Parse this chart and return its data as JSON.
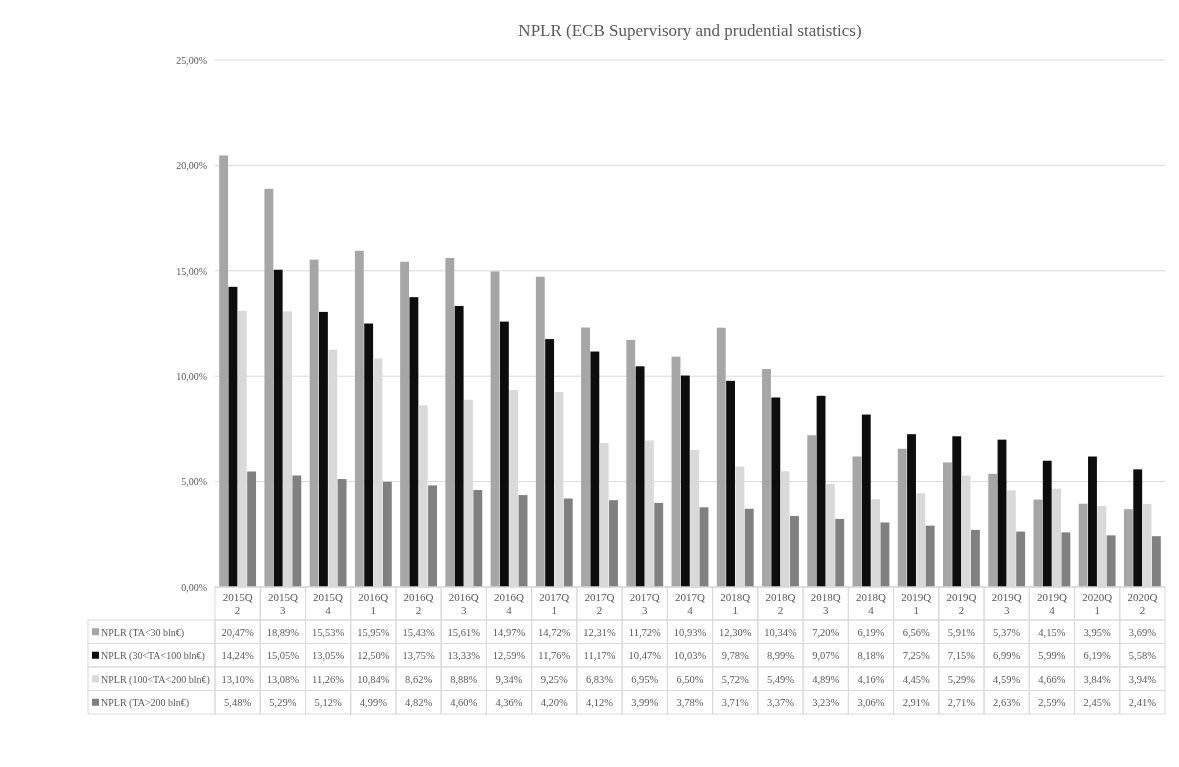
{
  "chart_data": {
    "type": "bar",
    "title": "NPLR (ECB Supervisory and prudential statistics)",
    "categories": [
      "2015Q2",
      "2015Q3",
      "2015Q4",
      "2016Q1",
      "2016Q2",
      "2016Q3",
      "2016Q4",
      "2017Q1",
      "2017Q2",
      "2017Q3",
      "2017Q4",
      "2018Q1",
      "2018Q2",
      "2018Q3",
      "2018Q4",
      "2019Q1",
      "2019Q2",
      "2019Q3",
      "2019Q4",
      "2020Q1",
      "2020Q2"
    ],
    "series": [
      {
        "name": "NPLR (TA<30 bln€)",
        "color": "#a6a6a6",
        "values": [
          20.47,
          18.89,
          15.53,
          15.95,
          15.43,
          15.61,
          14.97,
          14.72,
          12.31,
          11.72,
          10.93,
          12.3,
          10.34,
          7.2,
          6.19,
          6.56,
          5.91,
          5.37,
          4.15,
          3.95,
          3.69
        ],
        "value_labels": [
          "20,47%",
          "18,89%",
          "15,53%",
          "15,95%",
          "15,43%",
          "15,61%",
          "14,97%",
          "14,72%",
          "12,31%",
          "11,72%",
          "10,93%",
          "12,30%",
          "10,34%",
          "7,20%",
          "6,19%",
          "6,56%",
          "5,91%",
          "5,37%",
          "4,15%",
          "3,95%",
          "3,69%"
        ]
      },
      {
        "name": "NPLR (30<TA<100 bln€)",
        "color": "#0d0d0d",
        "values": [
          14.24,
          15.05,
          13.05,
          12.5,
          13.75,
          13.33,
          12.59,
          11.76,
          11.17,
          10.47,
          10.03,
          9.78,
          8.99,
          9.07,
          8.18,
          7.25,
          7.15,
          6.99,
          5.99,
          6.19,
          5.58
        ],
        "value_labels": [
          "14,24%",
          "15,05%",
          "13,05%",
          "12,50%",
          "13,75%",
          "13,33%",
          "12,59%",
          "11,76%",
          "11,17%",
          "10,47%",
          "10,03%",
          "9,78%",
          "8,99%",
          "9,07%",
          "8,18%",
          "7,25%",
          "7,15%",
          "6,99%",
          "5,99%",
          "6,19%",
          "5,58%"
        ]
      },
      {
        "name": "NPLR (100<TA<200 bln€)",
        "color": "#d9d9d9",
        "values": [
          13.1,
          13.08,
          11.26,
          10.84,
          8.62,
          8.88,
          9.34,
          9.25,
          6.83,
          6.95,
          6.5,
          5.72,
          5.49,
          4.89,
          4.16,
          4.45,
          5.29,
          4.59,
          4.66,
          3.84,
          3.94
        ],
        "value_labels": [
          "13,10%",
          "13,08%",
          "11,26%",
          "10,84%",
          "8,62%",
          "8,88%",
          "9,34%",
          "9,25%",
          "6,83%",
          "6,95%",
          "6,50%",
          "5,72%",
          "5,49%",
          "4,89%",
          "4,16%",
          "4,45%",
          "5,29%",
          "4,59%",
          "4,66%",
          "3,84%",
          "3,94%"
        ]
      },
      {
        "name": "NPLR (TA>200 bln€)",
        "color": "#808080",
        "values": [
          5.48,
          5.29,
          5.12,
          4.99,
          4.82,
          4.6,
          4.36,
          4.2,
          4.12,
          3.99,
          3.78,
          3.71,
          3.37,
          3.23,
          3.06,
          2.91,
          2.71,
          2.63,
          2.59,
          2.45,
          2.41
        ],
        "value_labels": [
          "5,48%",
          "5,29%",
          "5,12%",
          "4,99%",
          "4,82%",
          "4,60%",
          "4,36%",
          "4,20%",
          "4,12%",
          "3,99%",
          "3,78%",
          "3,71%",
          "3,37%",
          "3,23%",
          "3,06%",
          "2,91%",
          "2,71%",
          "2,63%",
          "2,59%",
          "2,45%",
          "2,41%"
        ]
      }
    ],
    "ylim": [
      0,
      25
    ],
    "yticks": [
      {
        "value": 0,
        "label": "0,00%"
      },
      {
        "value": 5,
        "label": "5,00%"
      },
      {
        "value": 10,
        "label": "10,00%"
      },
      {
        "value": 15,
        "label": "15,00%"
      },
      {
        "value": 20,
        "label": "20,00%"
      },
      {
        "value": 25,
        "label": "25,00%"
      }
    ],
    "grid": "y",
    "legend": "bottom"
  }
}
